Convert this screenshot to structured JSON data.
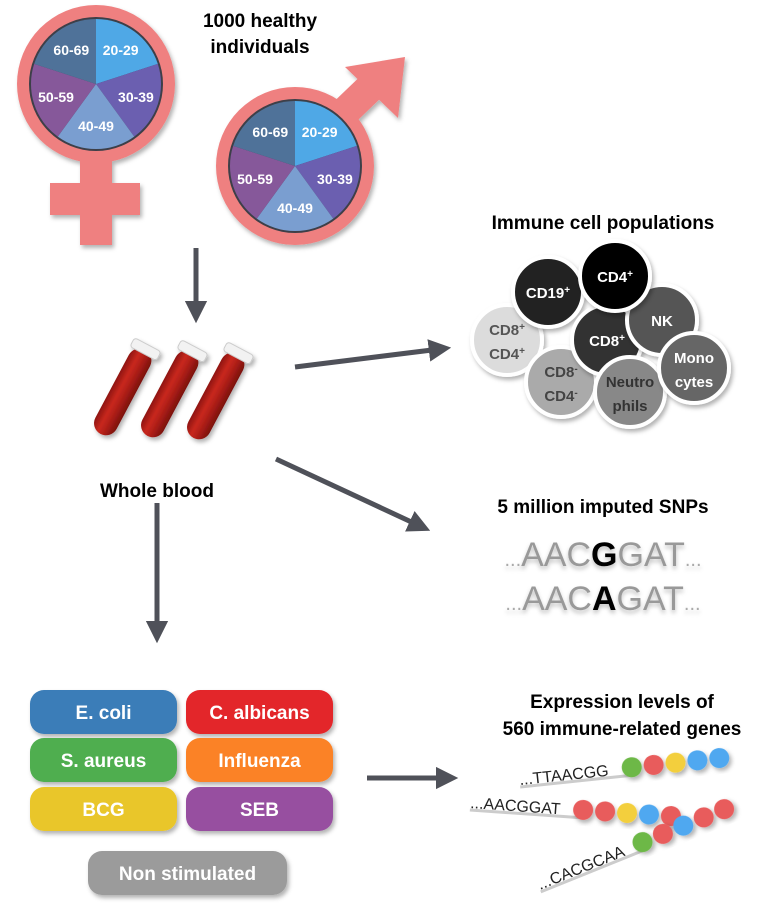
{
  "cohort": {
    "title_line1": "1000 healthy",
    "title_line2": "individuals",
    "age_groups": [
      "20-29",
      "30-39",
      "40-49",
      "50-59",
      "60-69"
    ],
    "age_colors": [
      "#4fa8e6",
      "#6b5fb0",
      "#7a9ed0",
      "#86589a",
      "#4f7299"
    ],
    "symbol_color": "#ef8080"
  },
  "sample": {
    "label": "Whole blood"
  },
  "cells": {
    "title": "Immune cell populations",
    "items": [
      {
        "l1": "CD8",
        "s1": "+",
        "l2": "CD4",
        "s2": "+"
      },
      {
        "l1": "CD19",
        "s1": "+"
      },
      {
        "l1": "CD8",
        "s1": "-",
        "l2": "CD4",
        "s2": "-"
      },
      {
        "l1": "CD8",
        "s1": "+"
      },
      {
        "l1": "NK"
      },
      {
        "l1": "Neutro",
        "l2": "phils"
      },
      {
        "l1": "Mono",
        "l2": "cytes"
      },
      {
        "l1": "CD4",
        "s1": "+"
      }
    ]
  },
  "snps": {
    "title": "5 million imputed SNPs",
    "dots": "...",
    "seq1": {
      "pre": "AAC",
      "variant": "G",
      "post": "GAT"
    },
    "seq2": {
      "pre": "AAC",
      "variant": "A",
      "post": "GAT"
    }
  },
  "stimuli": {
    "items": [
      {
        "label": "E. coli",
        "color": "#3a7db8"
      },
      {
        "label": "C. albicans",
        "color": "#e3262b"
      },
      {
        "label": "S. aureus",
        "color": "#4fae4f"
      },
      {
        "label": "Influenza",
        "color": "#fb8226"
      },
      {
        "label": "BCG",
        "color": "#e9c62a"
      },
      {
        "label": "SEB",
        "color": "#974fa0"
      },
      {
        "label": "Non stimulated",
        "color": "#9b9b9b"
      }
    ]
  },
  "expression": {
    "title_line1": "Expression levels of",
    "title_line2": "560 immune-related genes",
    "strands": [
      "...TTAACGG",
      "...AACGGAT",
      "...CACGCAA"
    ],
    "bead_colors": [
      [
        "#6db847",
        "#e85c5c",
        "#f3cf3c",
        "#4fa8f0",
        "#4fa8f0"
      ],
      [
        "#e85c5c",
        "#e85c5c",
        "#f3cf3c",
        "#4fa8f0",
        "#e85c5c"
      ],
      [
        "#6db847",
        "#e85c5c",
        "#4fa8f0",
        "#e85c5c",
        "#e85c5c"
      ]
    ]
  },
  "arrow_color": "#4f5159"
}
